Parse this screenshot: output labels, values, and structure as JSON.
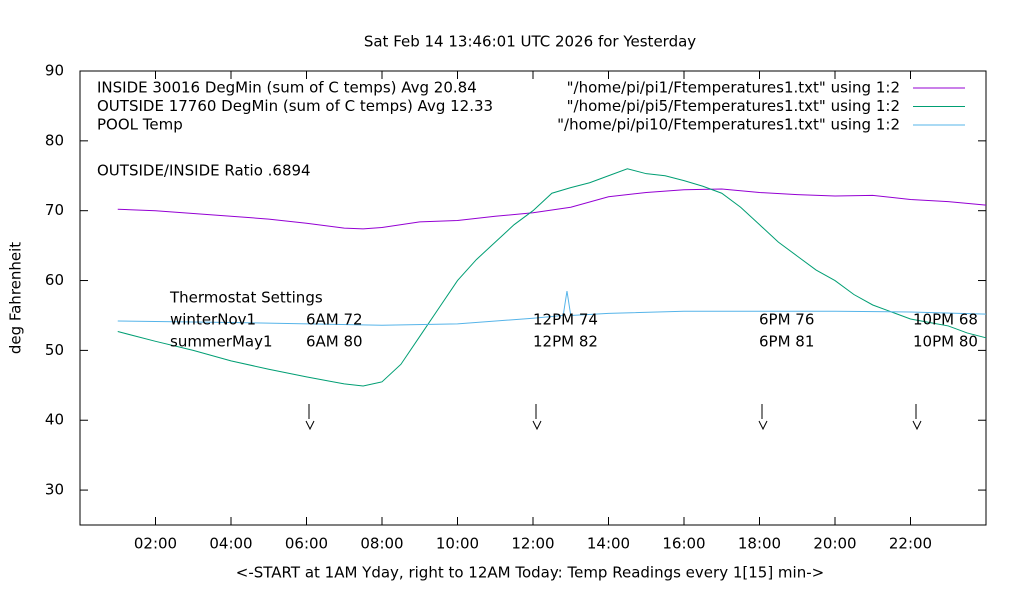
{
  "chart_data": {
    "type": "line",
    "title": "Sat Feb 14 13:46:01 UTC 2026 for Yesterday",
    "x_label": "<-START at 1AM Yday, right to 12AM Today:  Temp Readings every 1[15] min->",
    "y_label": "deg Fahrenheit",
    "xlim": [
      0,
      24
    ],
    "ylim": [
      25,
      90
    ],
    "xticks": [
      {
        "value": 2,
        "label": "02:00"
      },
      {
        "value": 4,
        "label": "04:00"
      },
      {
        "value": 6,
        "label": "06:00"
      },
      {
        "value": 8,
        "label": "08:00"
      },
      {
        "value": 10,
        "label": "10:00"
      },
      {
        "value": 12,
        "label": "12:00"
      },
      {
        "value": 14,
        "label": "14:00"
      },
      {
        "value": 16,
        "label": "16:00"
      },
      {
        "value": 18,
        "label": "18:00"
      },
      {
        "value": 20,
        "label": "20:00"
      },
      {
        "value": 22,
        "label": "22:00"
      }
    ],
    "yticks": [
      30,
      40,
      50,
      60,
      70,
      80,
      90
    ],
    "grid": false,
    "legend": "top-right",
    "annotation": "OUTSIDE/INSIDE Ratio .6894",
    "thermostat": {
      "title": "Thermostat Settings",
      "rows": [
        {
          "name": "winterNov1",
          "settings": [
            "6AM 72",
            "12PM 74",
            "6PM 76",
            "10PM 68"
          ]
        },
        {
          "name": "summerMay1",
          "settings": [
            "6AM 80",
            "12PM 82",
            "6PM 81",
            "10PM 80"
          ]
        }
      ]
    },
    "series": [
      {
        "name": "INSIDE 30016 DegMin (sum of C temps) Avg 20.84",
        "source": "\"/home/pi/pi1/Ftemperatures1.txt\" using 1:2",
        "color": "#9400d3",
        "x": [
          1,
          2,
          3,
          4,
          5,
          6,
          7,
          7.5,
          8,
          9,
          10,
          11,
          12,
          13,
          14,
          15,
          16,
          17,
          18,
          19,
          20,
          21,
          22,
          23,
          24
        ],
        "values": [
          70.2,
          70,
          69.6,
          69.2,
          68.8,
          68.2,
          67.5,
          67.4,
          67.6,
          68.4,
          68.6,
          69.2,
          69.7,
          70.5,
          72,
          72.6,
          73,
          73.1,
          72.6,
          72.3,
          72.1,
          72.2,
          71.6,
          71.3,
          70.8
        ]
      },
      {
        "name": "OUTSIDE 17760 DegMin (sum of C temps) Avg 12.33",
        "source": "\"/home/pi/pi5/Ftemperatures1.txt\" using 1:2",
        "color": "#009e73",
        "x": [
          1,
          2,
          3,
          4,
          5,
          6,
          7,
          7.5,
          8,
          8.5,
          9,
          9.5,
          10,
          10.5,
          11,
          11.5,
          12,
          12.5,
          13,
          13.5,
          14,
          14.5,
          15,
          15.5,
          16,
          16.5,
          17,
          17.5,
          18,
          18.5,
          19,
          19.5,
          20,
          20.5,
          21,
          21.5,
          22,
          22.5,
          23,
          23.5,
          24
        ],
        "values": [
          52.7,
          51.3,
          50,
          48.5,
          47.3,
          46.2,
          45.2,
          44.9,
          45.5,
          48,
          52,
          56,
          60,
          63,
          65.5,
          68,
          70,
          72.5,
          73.3,
          74,
          75,
          76,
          75.3,
          75,
          74.3,
          73.5,
          72.5,
          70.5,
          68,
          65.5,
          63.5,
          61.5,
          60,
          58,
          56.5,
          55.5,
          54.5,
          54,
          53.5,
          52.5,
          51.8
        ]
      },
      {
        "name": "POOL Temp",
        "source": "\"/home/pi/pi10/Ftemperatures1.txt\" using 1:2",
        "color": "#56b4e9",
        "x": [
          1,
          4,
          8,
          10,
          12,
          12.8,
          12.9,
          13,
          14,
          16,
          18,
          20,
          22,
          24
        ],
        "values": [
          54.2,
          54,
          53.6,
          53.8,
          54.6,
          55,
          58.5,
          55,
          55.3,
          55.6,
          55.6,
          55.6,
          55.5,
          55.2
        ]
      }
    ]
  }
}
